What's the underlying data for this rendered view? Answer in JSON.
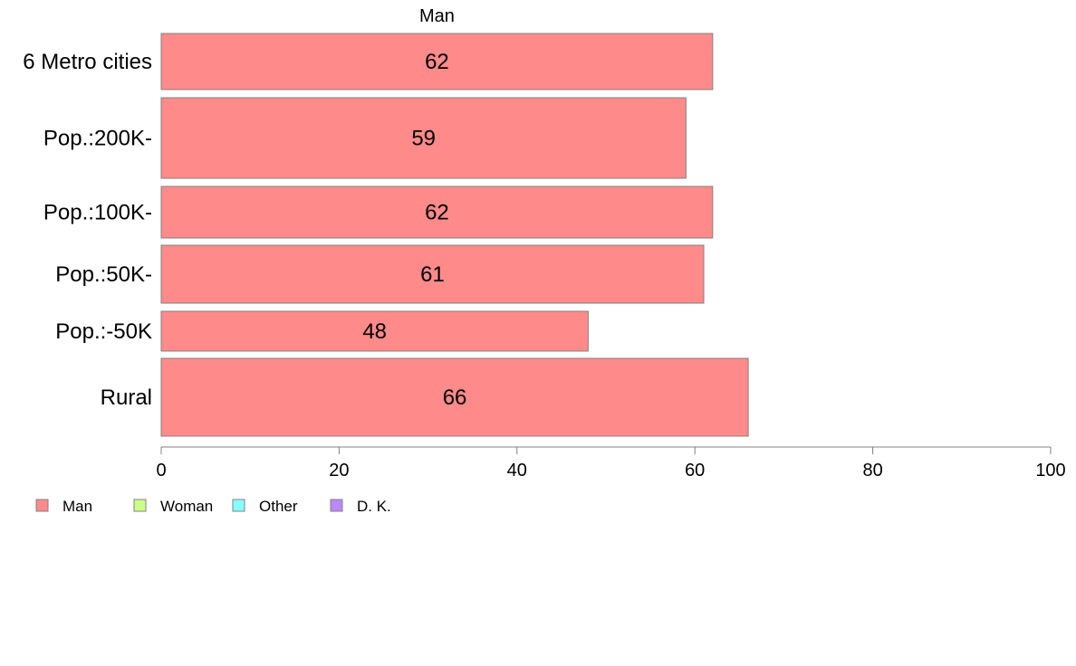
{
  "chart_data": {
    "type": "bar",
    "orientation": "horizontal",
    "top_label": "Man",
    "categories": [
      "6 Metro cities",
      "Pop.:200K-",
      "Pop.:100K-",
      "Pop.:50K-",
      "Pop.:-50K",
      "Rural"
    ],
    "series": [
      {
        "name": "Man",
        "values": [
          62,
          59,
          62,
          61,
          48,
          66
        ],
        "color": "#ff8a8a"
      }
    ],
    "data_labels": [
      "62",
      "59",
      "62",
      "61",
      "48",
      "66"
    ],
    "x_ticks": [
      0,
      20,
      40,
      60,
      80,
      100
    ],
    "xlim": [
      0,
      100
    ],
    "grid": false,
    "legend": {
      "placement": "bottom-left",
      "items": [
        {
          "label": "Man",
          "color": "#ff8a8a"
        },
        {
          "label": "Woman",
          "color": "#ccff88"
        },
        {
          "label": "Other",
          "color": "#88ffff"
        },
        {
          "label": "D. K.",
          "color": "#bb88ff"
        }
      ]
    }
  }
}
